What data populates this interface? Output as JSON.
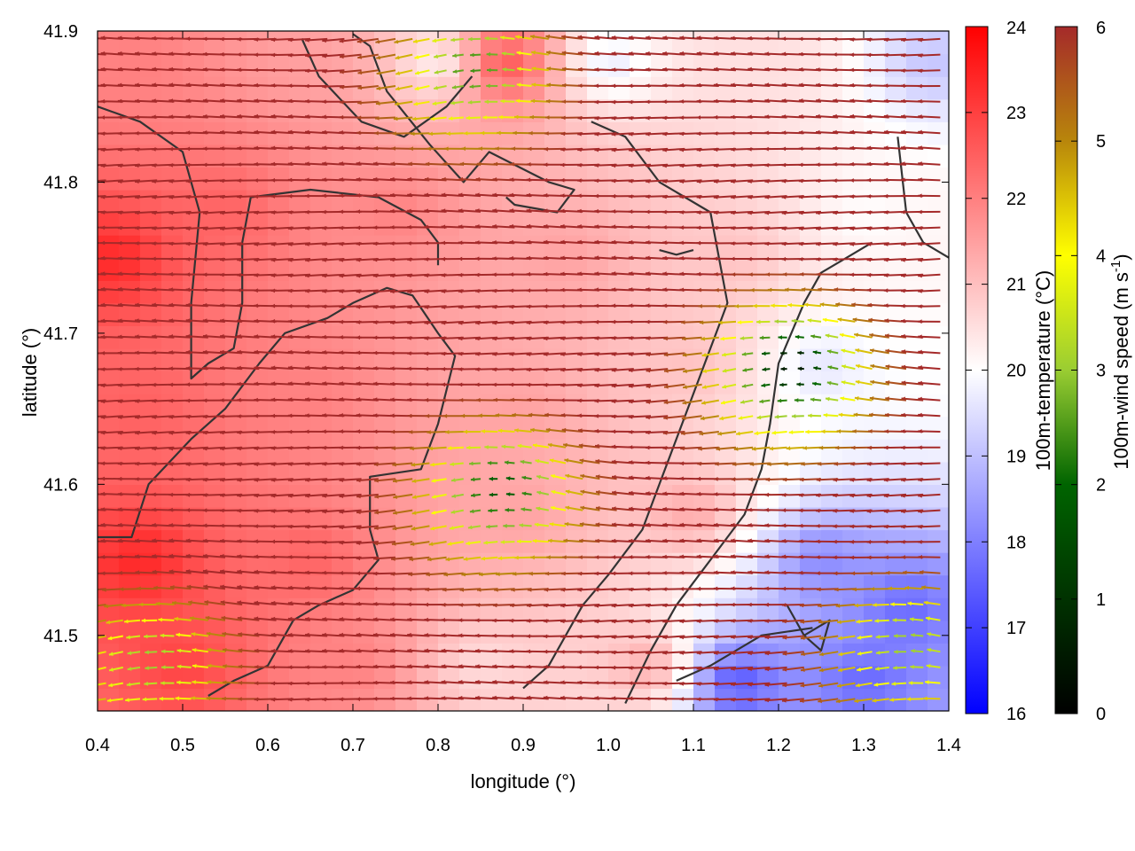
{
  "chart_data": {
    "type": "heatmap",
    "title": "",
    "xlabel": "longitude (°)",
    "ylabel": "latitude (°)",
    "xlim": [
      0.4,
      1.4
    ],
    "ylim": [
      41.45,
      41.9
    ],
    "xticks": [
      "0.4",
      "0.5",
      "0.6",
      "0.7",
      "0.8",
      "0.9",
      "1.0",
      "1.1",
      "1.2",
      "1.3",
      "1.4"
    ],
    "yticks": [
      "41.5",
      "41.6",
      "41.7",
      "41.8",
      "41.9"
    ],
    "temperature_colorbar": {
      "label": "100m-temperature (°C)",
      "range": [
        16,
        24
      ],
      "ticks": [
        "16",
        "17",
        "18",
        "19",
        "20",
        "21",
        "22",
        "23",
        "24"
      ],
      "colors": [
        "#0000ff",
        "#ffffff",
        "#ff0000"
      ]
    },
    "wind_colorbar": {
      "label_main": "100m-wind speed (m s",
      "label_sup": "-1",
      "label_end": ")",
      "range": [
        0,
        6
      ],
      "ticks": [
        "0",
        "1",
        "2",
        "3",
        "4",
        "5",
        "6"
      ],
      "colors": [
        "#000000",
        "#006400",
        "#9acd32",
        "#ffff00",
        "#b8860b",
        "#a52a2a"
      ]
    },
    "temperature_field": [
      {
        "lon": 0.45,
        "lat": 41.88,
        "t": 22.0
      },
      {
        "lon": 0.65,
        "lat": 41.88,
        "t": 21.5
      },
      {
        "lon": 0.8,
        "lat": 41.88,
        "t": 20.0
      },
      {
        "lon": 0.88,
        "lat": 41.88,
        "t": 23.0
      },
      {
        "lon": 1.0,
        "lat": 41.88,
        "t": 19.5
      },
      {
        "lon": 1.2,
        "lat": 41.88,
        "t": 20.5
      },
      {
        "lon": 1.38,
        "lat": 41.88,
        "t": 19.0
      },
      {
        "lon": 0.42,
        "lat": 41.75,
        "t": 23.5
      },
      {
        "lon": 0.55,
        "lat": 41.78,
        "t": 22.5
      },
      {
        "lon": 0.75,
        "lat": 41.78,
        "t": 22.0
      },
      {
        "lon": 0.95,
        "lat": 41.75,
        "t": 21.5
      },
      {
        "lon": 1.15,
        "lat": 41.75,
        "t": 21.0
      },
      {
        "lon": 1.3,
        "lat": 41.78,
        "t": 20.0
      },
      {
        "lon": 0.45,
        "lat": 41.65,
        "t": 22.5
      },
      {
        "lon": 0.65,
        "lat": 41.66,
        "t": 22.0
      },
      {
        "lon": 0.9,
        "lat": 41.65,
        "t": 21.5
      },
      {
        "lon": 1.1,
        "lat": 41.68,
        "t": 21.0
      },
      {
        "lon": 1.25,
        "lat": 41.68,
        "t": 19.5
      },
      {
        "lon": 1.38,
        "lat": 41.68,
        "t": 20.0
      },
      {
        "lon": 0.45,
        "lat": 41.55,
        "t": 23.5
      },
      {
        "lon": 0.65,
        "lat": 41.55,
        "t": 22.5
      },
      {
        "lon": 0.9,
        "lat": 41.58,
        "t": 21.5
      },
      {
        "lon": 1.1,
        "lat": 41.58,
        "t": 21.5
      },
      {
        "lon": 1.25,
        "lat": 41.55,
        "t": 18.0
      },
      {
        "lon": 1.35,
        "lat": 41.52,
        "t": 17.5
      },
      {
        "lon": 0.5,
        "lat": 41.48,
        "t": 23.0
      },
      {
        "lon": 0.7,
        "lat": 41.48,
        "t": 22.0
      },
      {
        "lon": 0.85,
        "lat": 41.48,
        "t": 20.5
      },
      {
        "lon": 1.05,
        "lat": 41.48,
        "t": 21.5
      },
      {
        "lon": 1.15,
        "lat": 41.47,
        "t": 17.0
      },
      {
        "lon": 1.3,
        "lat": 41.47,
        "t": 17.5
      }
    ],
    "wind_centers": [
      {
        "lon": 0.88,
        "lat": 41.6,
        "strength": 0.7
      },
      {
        "lon": 0.85,
        "lat": 41.88,
        "strength": 0.6
      },
      {
        "lon": 1.22,
        "lat": 41.68,
        "strength": 0.8
      },
      {
        "lon": 0.47,
        "lat": 41.49,
        "strength": 0.5
      },
      {
        "lon": 1.36,
        "lat": 41.5,
        "strength": 0.5
      }
    ],
    "contours": [
      [
        [
          0.7,
          41.898
        ],
        [
          0.72,
          41.89
        ],
        [
          0.74,
          41.86
        ],
        [
          0.79,
          41.825
        ],
        [
          0.83,
          41.8
        ],
        [
          0.86,
          41.82
        ],
        [
          0.93,
          41.8
        ],
        [
          0.96,
          41.795
        ],
        [
          0.94,
          41.78
        ],
        [
          0.89,
          41.785
        ],
        [
          0.88,
          41.79
        ]
      ],
      [
        [
          0.64,
          41.895
        ],
        [
          0.66,
          41.87
        ],
        [
          0.71,
          41.84
        ],
        [
          0.76,
          41.83
        ],
        [
          0.81,
          41.85
        ],
        [
          0.84,
          41.87
        ]
      ],
      [
        [
          0.4,
          41.85
        ],
        [
          0.45,
          41.84
        ],
        [
          0.5,
          41.82
        ],
        [
          0.52,
          41.78
        ],
        [
          0.51,
          41.72
        ],
        [
          0.51,
          41.67
        ],
        [
          0.53,
          41.68
        ],
        [
          0.56,
          41.69
        ],
        [
          0.57,
          41.72
        ],
        [
          0.57,
          41.76
        ],
        [
          0.58,
          41.79
        ],
        [
          0.65,
          41.795
        ],
        [
          0.73,
          41.79
        ],
        [
          0.78,
          41.775
        ],
        [
          0.8,
          41.76
        ],
        [
          0.8,
          41.745
        ]
      ],
      [
        [
          0.4,
          41.565
        ],
        [
          0.44,
          41.565
        ],
        [
          0.46,
          41.6
        ],
        [
          0.51,
          41.63
        ],
        [
          0.55,
          41.65
        ],
        [
          0.59,
          41.68
        ],
        [
          0.62,
          41.7
        ],
        [
          0.67,
          41.71
        ],
        [
          0.7,
          41.72
        ],
        [
          0.74,
          41.73
        ],
        [
          0.77,
          41.725
        ],
        [
          0.8,
          41.7
        ],
        [
          0.82,
          41.685
        ],
        [
          0.8,
          41.64
        ],
        [
          0.78,
          41.61
        ],
        [
          0.72,
          41.605
        ],
        [
          0.72,
          41.57
        ],
        [
          0.73,
          41.55
        ],
        [
          0.7,
          41.53
        ],
        [
          0.66,
          41.52
        ],
        [
          0.63,
          41.51
        ],
        [
          0.6,
          41.48
        ],
        [
          0.56,
          41.47
        ],
        [
          0.53,
          41.46
        ]
      ],
      [
        [
          0.98,
          41.84
        ],
        [
          1.02,
          41.83
        ],
        [
          1.06,
          41.8
        ],
        [
          1.12,
          41.78
        ],
        [
          1.13,
          41.75
        ],
        [
          1.14,
          41.72
        ],
        [
          1.12,
          41.69
        ],
        [
          1.1,
          41.66
        ],
        [
          1.08,
          41.63
        ],
        [
          1.06,
          41.6
        ],
        [
          1.04,
          41.57
        ],
        [
          1.0,
          41.54
        ],
        [
          0.97,
          41.52
        ],
        [
          0.95,
          41.5
        ],
        [
          0.93,
          41.48
        ],
        [
          0.9,
          41.465
        ]
      ],
      [
        [
          1.02,
          41.455
        ],
        [
          1.05,
          41.49
        ],
        [
          1.08,
          41.52
        ],
        [
          1.12,
          41.55
        ],
        [
          1.16,
          41.58
        ],
        [
          1.18,
          41.61
        ],
        [
          1.19,
          41.64
        ],
        [
          1.2,
          41.68
        ],
        [
          1.23,
          41.72
        ],
        [
          1.25,
          41.74
        ],
        [
          1.28,
          41.75
        ],
        [
          1.31,
          41.76
        ]
      ],
      [
        [
          1.21,
          41.52
        ],
        [
          1.23,
          41.5
        ],
        [
          1.26,
          41.51
        ],
        [
          1.25,
          41.49
        ],
        [
          1.23,
          41.5
        ]
      ],
      [
        [
          1.34,
          41.83
        ],
        [
          1.35,
          41.78
        ],
        [
          1.37,
          41.76
        ],
        [
          1.4,
          41.75
        ]
      ],
      [
        [
          1.06,
          41.755
        ],
        [
          1.08,
          41.752
        ],
        [
          1.1,
          41.755
        ]
      ],
      [
        [
          1.08,
          41.47
        ],
        [
          1.12,
          41.48
        ],
        [
          1.18,
          41.5
        ],
        [
          1.24,
          41.505
        ]
      ]
    ]
  }
}
